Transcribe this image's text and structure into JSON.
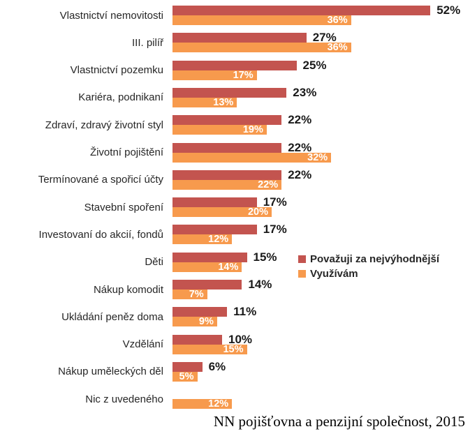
{
  "chart_data": {
    "type": "bar",
    "orientation": "horizontal",
    "title": "",
    "xlabel": "",
    "ylabel": "",
    "xlim": [
      0,
      58
    ],
    "grid": false,
    "legend_position": "middle-right",
    "value_label_format": "percent",
    "categories": [
      "Vlastnictví nemovitosti",
      "III. pilíř",
      "Vlastnictví pozemku",
      "Kariéra, podnikaní",
      "Zdraví, zdravý životní styl",
      "Životní pojištění",
      "Termínované a spořicí účty",
      "Stavební spoření",
      "Investovaní do akcií, fondů",
      "Děti",
      "Nákup komodit",
      "Ukládání peněz doma",
      "Vzdělání",
      "Nákup uměleckých děl",
      "Nic z uvedeného"
    ],
    "series": [
      {
        "name": "Považuji za nejvýhodnější",
        "color": "#c3544f",
        "label_style": "black-outside",
        "values": [
          52,
          27,
          25,
          23,
          22,
          22,
          22,
          17,
          17,
          15,
          14,
          11,
          10,
          6,
          null
        ]
      },
      {
        "name": "Využívám",
        "color": "#f79a4d",
        "label_style": "white-inside",
        "values": [
          36,
          36,
          17,
          13,
          19,
          32,
          22,
          20,
          12,
          14,
          7,
          9,
          15,
          5,
          12
        ]
      }
    ],
    "source": "NN pojišťovna a penzijní společnost, 2015"
  }
}
